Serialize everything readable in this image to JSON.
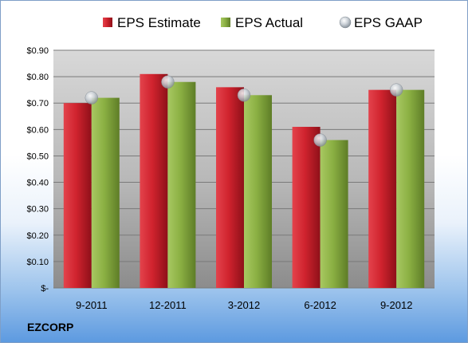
{
  "chart_data": {
    "type": "bar",
    "categories": [
      "9-2011",
      "12-2011",
      "3-2012",
      "6-2012",
      "9-2012"
    ],
    "series": [
      {
        "name": "EPS Estimate",
        "kind": "bar",
        "color": "#c81e2a",
        "values": [
          0.7,
          0.81,
          0.76,
          0.61,
          0.75
        ]
      },
      {
        "name": "EPS Actual",
        "kind": "bar",
        "color": "#86ad3f",
        "values": [
          0.72,
          0.78,
          0.73,
          0.56,
          0.75
        ]
      },
      {
        "name": "EPS GAAP",
        "kind": "marker",
        "color": "#b8c0c8",
        "values": [
          0.72,
          0.78,
          0.73,
          0.56,
          0.75
        ]
      }
    ],
    "ylim": [
      0,
      0.9
    ],
    "yticks": [
      0,
      0.1,
      0.2,
      0.3,
      0.4,
      0.5,
      0.6,
      0.7,
      0.8,
      0.9
    ],
    "ytick_labels": [
      "$-",
      "$0.10",
      "$0.20",
      "$0.30",
      "$0.40",
      "$0.50",
      "$0.60",
      "$0.70",
      "$0.80",
      "$0.90"
    ],
    "legend_position": "top",
    "grid": true
  },
  "company": "EZCORP"
}
